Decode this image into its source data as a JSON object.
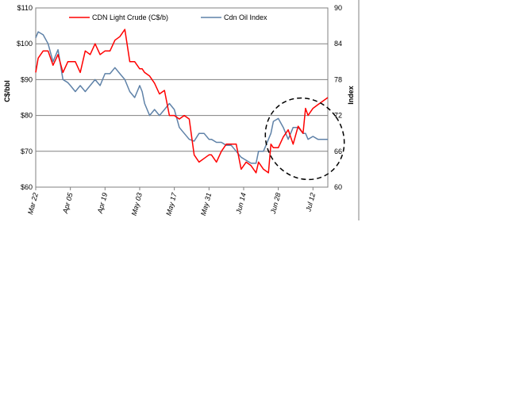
{
  "chart_data": {
    "type": "line",
    "xlabel": "",
    "ylabel": "C$/bbl",
    "y2label": "Index",
    "ylim": [
      60,
      110
    ],
    "y2lim": [
      60,
      90
    ],
    "y_ticks": [
      "$110",
      "$100",
      "$90",
      "$80",
      "$70",
      "$60"
    ],
    "y_tick_values": [
      110,
      100,
      90,
      80,
      70,
      60
    ],
    "y2_ticks": [
      "90",
      "84",
      "78",
      "72",
      "66",
      "60"
    ],
    "y2_tick_values": [
      90,
      84,
      78,
      72,
      66,
      60
    ],
    "x_ticks": [
      "Mar 22",
      "Apr 05",
      "Apr 19",
      "May 03",
      "May 17",
      "May 31",
      "Jun 14",
      "Jun 28",
      "Jul 12"
    ],
    "x_tick_days": [
      0,
      14,
      28,
      42,
      56,
      70,
      84,
      98,
      112
    ],
    "x_range_days": [
      0,
      118
    ],
    "grid": true,
    "legend_position": "top",
    "series": [
      {
        "name": "CDN Light Crude (C$/b)",
        "axis": "left",
        "color": "#ff0000",
        "x": [
          0,
          1,
          3,
          5,
          7,
          9,
          11,
          13,
          14,
          16,
          18,
          20,
          22,
          24,
          26,
          28,
          30,
          32,
          34,
          36,
          38,
          40,
          42,
          43,
          44,
          46,
          48,
          50,
          52,
          54,
          56,
          58,
          60,
          62,
          64,
          66,
          68,
          70,
          71,
          73,
          75,
          77,
          79,
          81,
          83,
          85,
          87,
          89,
          90,
          92,
          94,
          95,
          96,
          98,
          100,
          102,
          104,
          106,
          108,
          109,
          110,
          112,
          114,
          116,
          118
        ],
        "values": [
          92,
          96,
          98,
          98,
          94,
          97,
          92,
          95,
          95,
          95,
          92,
          98,
          97,
          100,
          97,
          98,
          98,
          101,
          102,
          104,
          95,
          95,
          93,
          93,
          92,
          91,
          89,
          86,
          87,
          80,
          80,
          79,
          80,
          79,
          69,
          67,
          68,
          69,
          69,
          67,
          70,
          72,
          72,
          72,
          65,
          67,
          66,
          64,
          67,
          65,
          64,
          72,
          71,
          71,
          74,
          76,
          72,
          77,
          75,
          82,
          80,
          82,
          83,
          84,
          85
        ]
      },
      {
        "name": "Cdn Oil Index",
        "axis": "right",
        "color": "#5f82a8",
        "x": [
          0,
          1,
          3,
          5,
          7,
          9,
          11,
          13,
          14,
          16,
          18,
          20,
          22,
          24,
          26,
          28,
          30,
          32,
          34,
          36,
          38,
          40,
          42,
          43,
          44,
          46,
          48,
          50,
          52,
          54,
          56,
          58,
          60,
          62,
          64,
          66,
          68,
          70,
          71,
          73,
          75,
          77,
          79,
          81,
          83,
          85,
          87,
          89,
          90,
          92,
          94,
          95,
          96,
          98,
          100,
          102,
          104,
          106,
          108,
          109,
          110,
          112,
          114,
          116,
          118
        ],
        "values": [
          85,
          86,
          85.5,
          84,
          81,
          83,
          78,
          77.5,
          77,
          76,
          77,
          76,
          77,
          78,
          77,
          79,
          79,
          80,
          79,
          78,
          76,
          75,
          77,
          76,
          74,
          72,
          73,
          72,
          73,
          74,
          73,
          70,
          69,
          68,
          67.7,
          69,
          69,
          68,
          68,
          67.5,
          67.5,
          67,
          67,
          66,
          65,
          64.5,
          64,
          64,
          66,
          66,
          68,
          69,
          71,
          71.5,
          70,
          68,
          70,
          70,
          69,
          69,
          68,
          68.5,
          68,
          68,
          68
        ]
      }
    ]
  },
  "annotations": {
    "highlight_ellipse": "dashed ellipse around the final weeks (Jun 28 – Jul 18)"
  }
}
